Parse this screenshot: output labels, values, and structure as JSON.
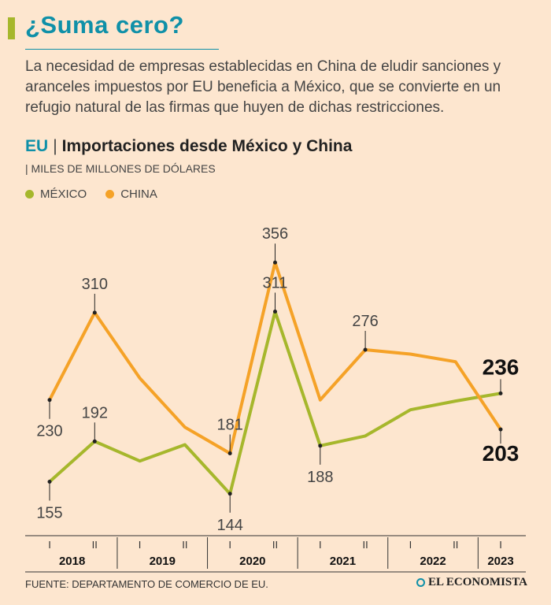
{
  "header": {
    "title": "¿Suma cero?",
    "intro": "La necesidad de empresas establecidas en China de eludir sanciones y aranceles impuestos por EU beneficia a México, que se convierte en un refugio natural de las firmas que huyen de dichas restricciones."
  },
  "chart_data": {
    "type": "line",
    "region": "EU",
    "title": "Importaciones desde México y China",
    "units": "MILES DE MILLONES DE DÓLARES",
    "x": [
      "2018-I",
      "2018-II",
      "2019-I",
      "2019-II",
      "2020-I",
      "2020-II",
      "2021-I",
      "2021-II",
      "2022-I",
      "2022-II",
      "2023-I"
    ],
    "years": [
      "2018",
      "2019",
      "2020",
      "2021",
      "2022",
      "2023"
    ],
    "half_labels": [
      "I",
      "II",
      "I",
      "II",
      "I",
      "II",
      "I",
      "II",
      "I",
      "II",
      "I"
    ],
    "ylim": [
      120,
      380
    ],
    "series": [
      {
        "name": "MÉXICO",
        "color": "#a6b72c",
        "values": [
          155,
          192,
          174,
          189,
          144,
          311,
          188,
          197,
          221,
          229,
          236
        ],
        "labels": [
          "155",
          "192",
          "",
          "",
          "144",
          "311",
          "188",
          "",
          "",
          "",
          "236"
        ]
      },
      {
        "name": "CHINA",
        "color": "#f5a227",
        "values": [
          230,
          310,
          250,
          205,
          181,
          356,
          230,
          276,
          272,
          265,
          203
        ],
        "labels": [
          "230",
          "310",
          "",
          "",
          "181",
          "356",
          "",
          "276",
          "",
          "",
          "203"
        ]
      }
    ]
  },
  "footer": {
    "source": "FUENTE: DEPARTAMENTO DE COMERCIO DE EU.",
    "brand": "EL ECONOMISTA"
  }
}
